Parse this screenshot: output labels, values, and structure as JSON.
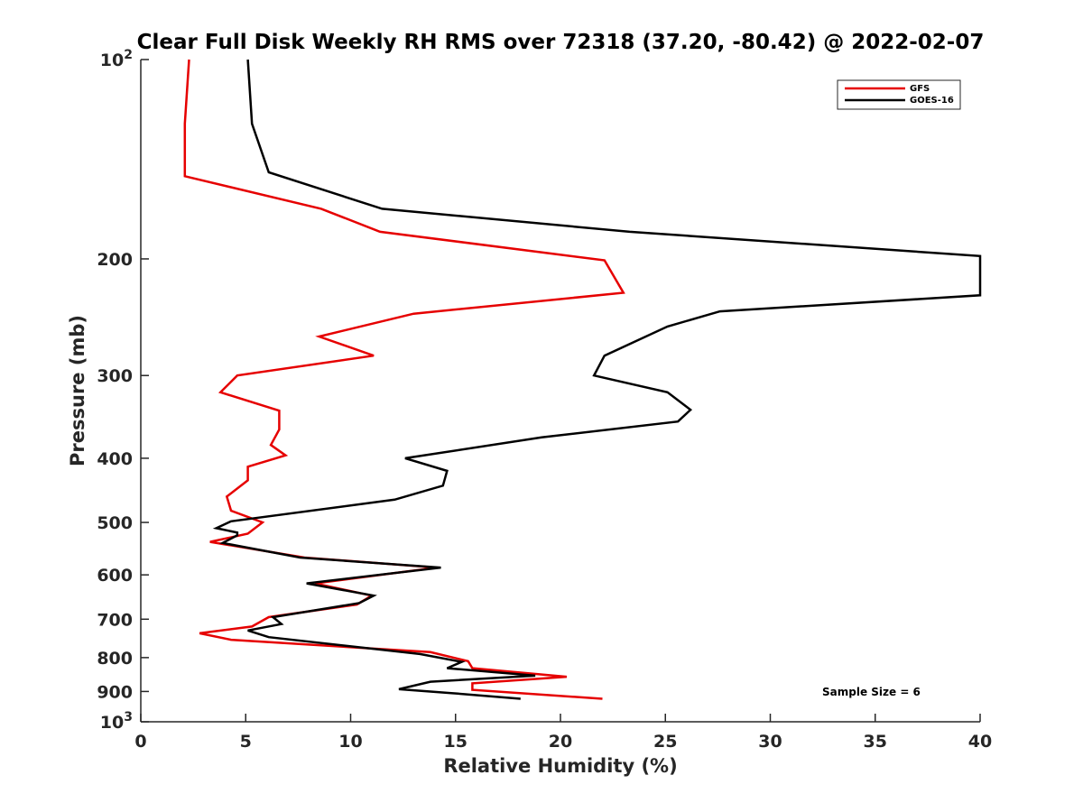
{
  "chart_data": {
    "type": "line",
    "title": "Clear Full Disk Weekly RH RMS over 72318 (37.20, -80.42) @ 2022-02-07",
    "xlabel": "Relative Humidity (%)",
    "ylabel": "Pressure (mb)",
    "xlim": [
      0,
      40
    ],
    "ylim": [
      100,
      1000
    ],
    "y_scale": "log",
    "y_reversed": true,
    "grid": false,
    "legend_position": "top-right",
    "x_ticks": [
      0,
      5,
      10,
      15,
      20,
      25,
      30,
      35,
      40
    ],
    "y_ticks": [
      {
        "value": 100,
        "base": "10",
        "exp": "2"
      },
      {
        "value": 200,
        "label": "200"
      },
      {
        "value": 300,
        "label": "300"
      },
      {
        "value": 400,
        "label": "400"
      },
      {
        "value": 500,
        "label": "500"
      },
      {
        "value": 600,
        "label": "600"
      },
      {
        "value": 700,
        "label": "700"
      },
      {
        "value": 800,
        "label": "800"
      },
      {
        "value": 900,
        "label": "900"
      },
      {
        "value": 1000,
        "base": "10",
        "exp": "3"
      }
    ],
    "series": [
      {
        "name": "GFS",
        "color": "#e60000",
        "points": [
          [
            2.3,
            100
          ],
          [
            2.1,
            125
          ],
          [
            2.1,
            150
          ],
          [
            8.6,
            168
          ],
          [
            11.4,
            182
          ],
          [
            22.1,
            201
          ],
          [
            23.0,
            225
          ],
          [
            13.0,
            242
          ],
          [
            8.5,
            262
          ],
          [
            11.1,
            280
          ],
          [
            4.6,
            300
          ],
          [
            3.8,
            318
          ],
          [
            6.6,
            339
          ],
          [
            6.6,
            362
          ],
          [
            6.2,
            382
          ],
          [
            6.9,
            396
          ],
          [
            5.1,
            412
          ],
          [
            5.1,
            432
          ],
          [
            4.1,
            457
          ],
          [
            4.3,
            480
          ],
          [
            5.8,
            500
          ],
          [
            5.1,
            520
          ],
          [
            3.3,
            535
          ],
          [
            7.8,
            565
          ],
          [
            14.1,
            585
          ],
          [
            8.3,
            618
          ],
          [
            11.0,
            645
          ],
          [
            10.3,
            665
          ],
          [
            6.1,
            695
          ],
          [
            5.3,
            718
          ],
          [
            2.8,
            735
          ],
          [
            4.3,
            752
          ],
          [
            13.8,
            785
          ],
          [
            15.6,
            810
          ],
          [
            15.8,
            830
          ],
          [
            20.3,
            855
          ],
          [
            15.8,
            875
          ],
          [
            15.8,
            895
          ],
          [
            22.0,
            923
          ]
        ]
      },
      {
        "name": "GOES-16",
        "color": "#000000",
        "points": [
          [
            5.1,
            100
          ],
          [
            5.3,
            125
          ],
          [
            6.1,
            148
          ],
          [
            11.5,
            168
          ],
          [
            23.3,
            182
          ],
          [
            40.0,
            198
          ],
          [
            40.0,
            227
          ],
          [
            27.6,
            240
          ],
          [
            25.1,
            253
          ],
          [
            22.1,
            280
          ],
          [
            21.6,
            300
          ],
          [
            25.1,
            318
          ],
          [
            26.2,
            338
          ],
          [
            25.6,
            352
          ],
          [
            19.1,
            372
          ],
          [
            12.6,
            400
          ],
          [
            14.6,
            418
          ],
          [
            14.4,
            440
          ],
          [
            12.1,
            462
          ],
          [
            4.3,
            498
          ],
          [
            3.6,
            510
          ],
          [
            4.6,
            518
          ],
          [
            4.6,
            523
          ],
          [
            3.9,
            537
          ],
          [
            7.6,
            565
          ],
          [
            14.3,
            585
          ],
          [
            7.9,
            618
          ],
          [
            11.1,
            645
          ],
          [
            10.4,
            662
          ],
          [
            6.3,
            695
          ],
          [
            6.7,
            712
          ],
          [
            5.1,
            728
          ],
          [
            6.1,
            745
          ],
          [
            13.3,
            790
          ],
          [
            15.3,
            812
          ],
          [
            14.6,
            830
          ],
          [
            18.8,
            852
          ],
          [
            13.8,
            870
          ],
          [
            12.3,
            893
          ],
          [
            14.8,
            905
          ],
          [
            18.1,
            923
          ]
        ]
      }
    ],
    "annotations": [
      "Sample Size = 6"
    ]
  }
}
